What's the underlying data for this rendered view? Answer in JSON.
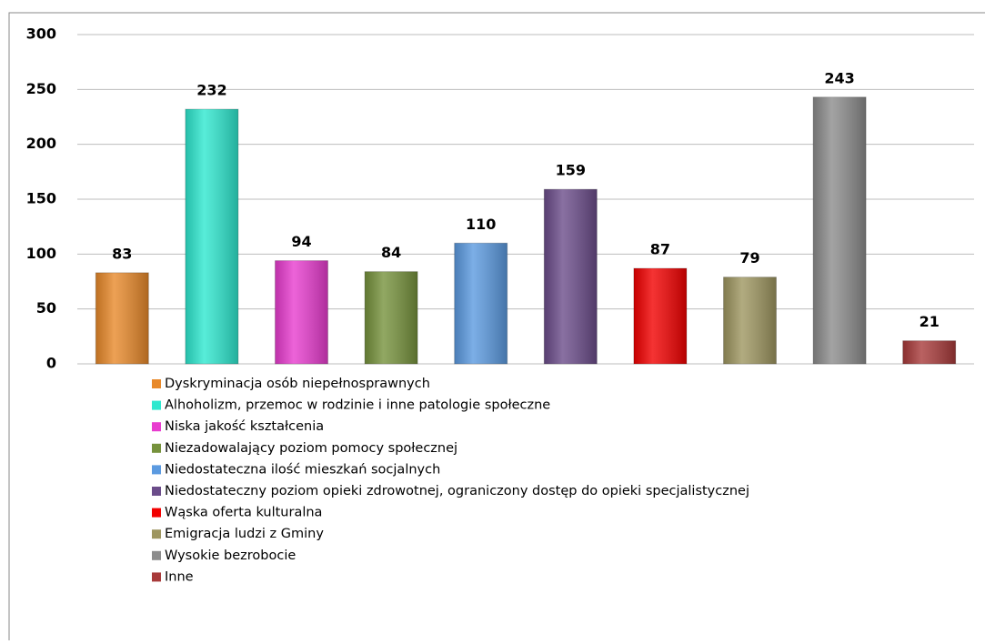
{
  "chart_data": {
    "type": "bar",
    "categories": [
      "Dyskryminacja osób niepełnosprawnych",
      "Alhoholizm, przemoc w rodzinie i inne patologie społeczne",
      "Niska jakość kształcenia",
      "Niezadowalający poziom pomocy społecznej",
      "Niedostateczna ilość mieszkań socjalnych",
      "Niedostateczny poziom opieki zdrowotnej, ograniczony dostęp do opieki specjalistycznej",
      "Wąska oferta kulturalna",
      "Emigracja ludzi z Gminy",
      "Wysokie bezrobocie",
      "Inne"
    ],
    "values": [
      83,
      232,
      94,
      84,
      110,
      159,
      87,
      79,
      243,
      21
    ],
    "colors": [
      "#e8892a",
      "#2ee8cf",
      "#e83ccf",
      "#76923c",
      "#5b9ae0",
      "#6b4c8a",
      "#f20000",
      "#9e9660",
      "#8c8c8c",
      "#a83a3a"
    ],
    "ylim": [
      0,
      300
    ],
    "yticks": [
      0,
      50,
      100,
      150,
      200,
      250,
      300
    ],
    "grid": true,
    "legend": "bottom"
  }
}
